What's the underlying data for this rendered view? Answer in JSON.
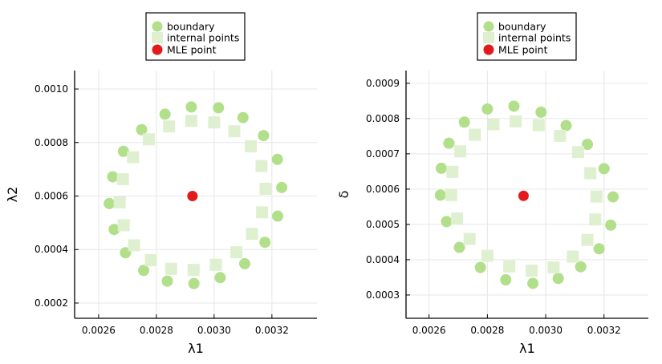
{
  "colors": {
    "boundary": "#b2df8a",
    "internal": "#dff0d0",
    "mle": "#e31a1c",
    "grid": "#e6e6e6"
  },
  "chart_data": [
    {
      "type": "scatter",
      "title": "",
      "xlabel": "λ1",
      "ylabel": "λ2",
      "xlim": [
        0.002517,
        0.003356
      ],
      "ylim": [
        0.000143,
        0.001069
      ],
      "xticks": [
        0.0026,
        0.0028,
        0.003,
        0.0032
      ],
      "xtick_labels": [
        "0.0026",
        "0.0028",
        "0.0030",
        "0.0032"
      ],
      "yticks": [
        0.0002,
        0.0004,
        0.0006,
        0.0008,
        0.001
      ],
      "ytick_labels": [
        "0.0002",
        "0.0004",
        "0.0006",
        "0.0008",
        "0.0010"
      ],
      "grid": true,
      "legend_position": "top-center-outside",
      "legend": [
        "boundary",
        "internal points",
        "MLE point"
      ],
      "series": [
        {
          "name": "boundary",
          "marker": "circle",
          "x": [
            0.002921,
            0.003015,
            0.0031,
            0.003171,
            0.003219,
            0.003234,
            0.00322,
            0.003176,
            0.003106,
            0.003021,
            0.00293,
            0.002838,
            0.002756,
            0.002693,
            0.002654,
            0.002637,
            0.002649,
            0.002686,
            0.002749,
            0.00283
          ],
          "y": [
            0.000933,
            0.00093,
            0.000893,
            0.000826,
            0.000737,
            0.000632,
            0.000525,
            0.000427,
            0.000347,
            0.000295,
            0.000273,
            0.000282,
            0.000322,
            0.000388,
            0.000475,
            0.000572,
            0.000672,
            0.000767,
            0.000848,
            0.000906
          ]
        },
        {
          "name": "internal points",
          "marker": "square",
          "x": [
            0.002921,
            0.003,
            0.00307,
            0.003127,
            0.003164,
            0.003178,
            0.003166,
            0.003131,
            0.003077,
            0.003006,
            0.002929,
            0.002851,
            0.002781,
            0.002723,
            0.002687,
            0.002673,
            0.002684,
            0.002719,
            0.002774,
            0.002844
          ],
          "y": [
            0.000881,
            0.000875,
            0.000842,
            0.000786,
            0.000712,
            0.000627,
            0.000539,
            0.000459,
            0.00039,
            0.000343,
            0.000324,
            0.000328,
            0.00036,
            0.000416,
            0.000491,
            0.000576,
            0.000663,
            0.000745,
            0.000812,
            0.00086
          ]
        },
        {
          "name": "MLE point",
          "marker": "circle",
          "x": [
            0.002925
          ],
          "y": [
            0.0006
          ]
        }
      ]
    },
    {
      "type": "scatter",
      "title": "",
      "xlabel": "λ1",
      "ylabel": "δ",
      "xlim": [
        0.002521,
        0.003352
      ],
      "ylim": [
        0.000234,
        0.000936
      ],
      "xticks": [
        0.0026,
        0.0028,
        0.003,
        0.0032
      ],
      "xtick_labels": [
        "0.0026",
        "0.0028",
        "0.0030",
        "0.0032"
      ],
      "yticks": [
        0.0003,
        0.0004,
        0.0005,
        0.0006,
        0.0007,
        0.0008,
        0.0009
      ],
      "ytick_labels": [
        "0.0003",
        "0.0004",
        "0.0005",
        "0.0006",
        "0.0007",
        "0.0008",
        "0.0009"
      ],
      "grid": true,
      "legend_position": "top-center-outside",
      "legend": [
        "boundary",
        "internal points",
        "MLE point"
      ],
      "series": [
        {
          "name": "boundary",
          "marker": "circle",
          "x": [
            0.002891,
            0.002984,
            0.00307,
            0.003143,
            0.0032,
            0.003231,
            0.003223,
            0.003183,
            0.00312,
            0.003043,
            0.002956,
            0.002863,
            0.002776,
            0.002704,
            0.00266,
            0.002639,
            0.002642,
            0.002668,
            0.002721,
            0.0028
          ],
          "y": [
            0.000835,
            0.000818,
            0.00078,
            0.000727,
            0.000658,
            0.000578,
            0.000498,
            0.000431,
            0.00038,
            0.000347,
            0.000333,
            0.000343,
            0.000378,
            0.000435,
            0.000508,
            0.000583,
            0.000659,
            0.00073,
            0.00079,
            0.000827
          ]
        },
        {
          "name": "internal points",
          "marker": "square",
          "x": [
            0.002897,
            0.002976,
            0.003049,
            0.003111,
            0.003153,
            0.003174,
            0.00317,
            0.003143,
            0.003093,
            0.003027,
            0.002952,
            0.002875,
            0.0028,
            0.002739,
            0.002696,
            0.002676,
            0.00268,
            0.002707,
            0.002757,
            0.002821
          ],
          "y": [
            0.000792,
            0.000781,
            0.000751,
            0.000705,
            0.000645,
            0.000579,
            0.000514,
            0.000456,
            0.000409,
            0.000378,
            0.000369,
            0.000381,
            0.000411,
            0.000459,
            0.000517,
            0.000583,
            0.000649,
            0.000707,
            0.000754,
            0.000784
          ]
        },
        {
          "name": "MLE point",
          "marker": "circle",
          "x": [
            0.002924
          ],
          "y": [
            0.000581
          ]
        }
      ]
    }
  ]
}
